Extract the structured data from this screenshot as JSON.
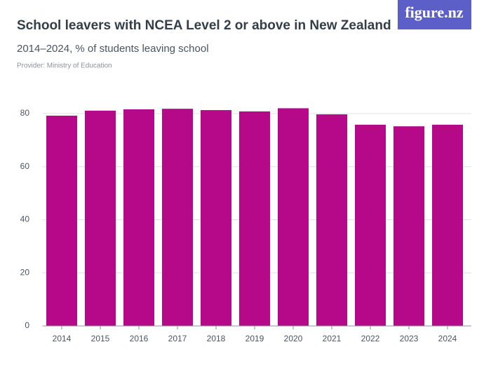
{
  "logo": "figure.nz",
  "chart_data": {
    "type": "bar",
    "title": "School leavers with NCEA Level 2 or above in New Zealand",
    "subtitle": "2014–2024, % of students leaving school",
    "provider": "Provider: Ministry of Education",
    "categories": [
      "2014",
      "2015",
      "2016",
      "2017",
      "2018",
      "2019",
      "2020",
      "2021",
      "2022",
      "2023",
      "2024"
    ],
    "values": [
      79.2,
      81.1,
      81.6,
      81.8,
      81.3,
      80.8,
      82.0,
      79.7,
      75.8,
      75.2,
      75.8
    ],
    "color": "#b5098a",
    "ylim": [
      0,
      80
    ],
    "yticks": [
      0,
      20,
      40,
      60,
      80
    ],
    "grid": true
  }
}
